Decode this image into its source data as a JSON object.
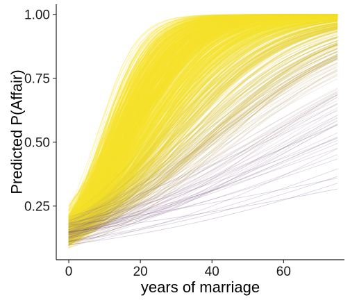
{
  "chart_data": {
    "type": "line",
    "title": "",
    "xlabel": "years of marriage",
    "ylabel": "Predicted P(Affair)",
    "xlim": [
      -3.5,
      77
    ],
    "ylim": [
      0.04,
      1.04
    ],
    "x_ticks": [
      0,
      20,
      40,
      60
    ],
    "x_tick_labels": [
      "0",
      "20",
      "40",
      "60"
    ],
    "y_ticks": [
      0.25,
      0.5,
      0.75,
      1.0
    ],
    "y_tick_labels": [
      "0.25",
      "0.50",
      "0.75",
      "1.00"
    ],
    "x_range": [
      0,
      75
    ],
    "grid": false,
    "legend": "none",
    "ensemble": {
      "description": "posterior draws of logistic curves, colored by a viridis-like gradient (dark purple to yellow)",
      "n_curves": 900,
      "intercept_at_0_range": [
        0.08,
        0.25
      ],
      "value_at_75_range": [
        0.28,
        0.995
      ]
    },
    "representative_series": [
      {
        "x": [
          0,
          10,
          20,
          30,
          40,
          50,
          60,
          75
        ],
        "y": [
          0.14,
          0.22,
          0.48,
          0.76,
          0.91,
          0.96,
          0.98,
          0.99
        ]
      },
      {
        "x": [
          0,
          10,
          20,
          30,
          40,
          50,
          60,
          75
        ],
        "y": [
          0.12,
          0.18,
          0.34,
          0.55,
          0.73,
          0.84,
          0.9,
          0.95
        ]
      },
      {
        "x": [
          0,
          10,
          20,
          30,
          40,
          50,
          60,
          75
        ],
        "y": [
          0.1,
          0.16,
          0.24,
          0.32,
          0.4,
          0.46,
          0.52,
          0.6
        ]
      },
      {
        "x": [
          0,
          10,
          20,
          30,
          40,
          50,
          60,
          75
        ],
        "y": [
          0.1,
          0.14,
          0.18,
          0.21,
          0.24,
          0.26,
          0.28,
          0.31
        ]
      }
    ],
    "colors": {
      "low": "#3b0f5c",
      "mid": "#8a6a8a",
      "high": "#f5e32a",
      "axis": "#222222"
    }
  }
}
